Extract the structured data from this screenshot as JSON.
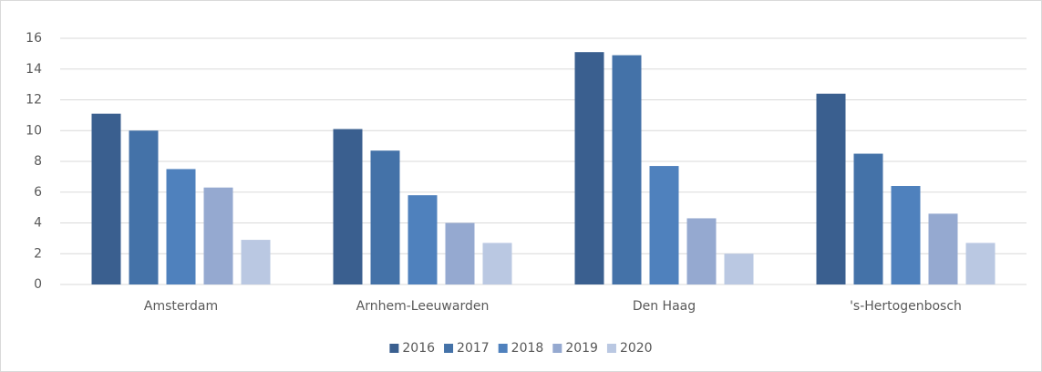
{
  "chart_data": {
    "type": "bar",
    "categories": [
      "Amsterdam",
      "Arnhem-Leeuwarden",
      "Den Haag",
      "'s-Hertogenbosch"
    ],
    "series": [
      {
        "name": "2016",
        "color": "#3a5f8f",
        "values": [
          11.1,
          10.1,
          15.1,
          12.4
        ]
      },
      {
        "name": "2017",
        "color": "#4472a8",
        "values": [
          10.0,
          8.7,
          14.9,
          8.5
        ]
      },
      {
        "name": "2018",
        "color": "#4f81bd",
        "values": [
          7.5,
          5.8,
          7.7,
          6.4
        ]
      },
      {
        "name": "2019",
        "color": "#95a9d0",
        "values": [
          6.3,
          4.0,
          4.3,
          4.6
        ]
      },
      {
        "name": "2020",
        "color": "#bac8e2",
        "values": [
          2.9,
          2.7,
          2.0,
          2.7
        ]
      }
    ],
    "ylim": [
      0,
      16
    ],
    "yticks": [
      0,
      2,
      4,
      6,
      8,
      10,
      12,
      14,
      16
    ],
    "grid": true,
    "legend": "bottom"
  }
}
